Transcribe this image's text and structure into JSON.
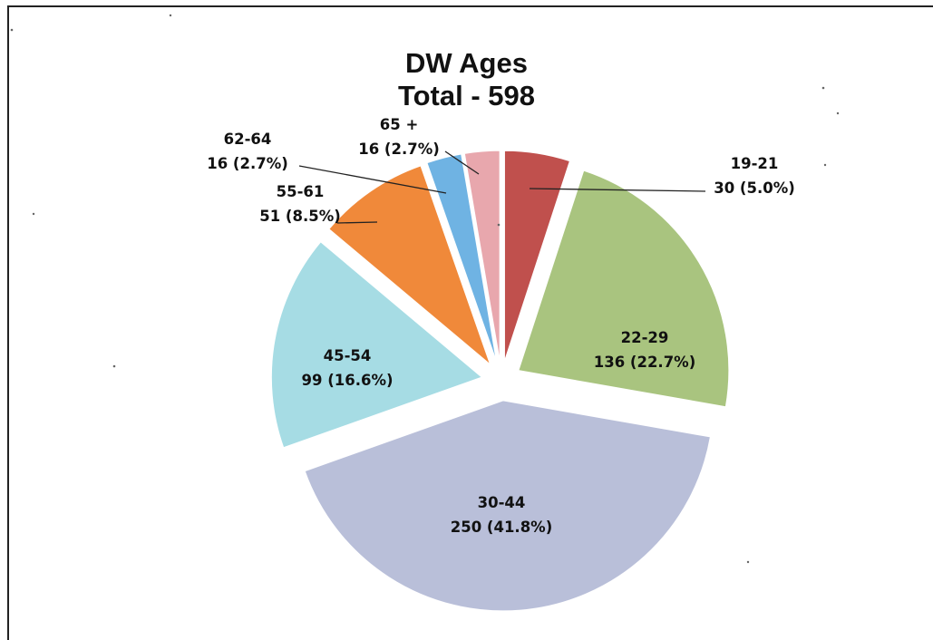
{
  "chart_data": {
    "type": "pie",
    "title": "DW  Ages",
    "subtitle": "Total - 598",
    "total": 598,
    "slices": [
      {
        "label": "19-21",
        "value": 30,
        "percent_text": "30 (5.0%)",
        "color": "#c0504d"
      },
      {
        "label": "22-29",
        "value": 136,
        "percent_text": "136 (22.7%)",
        "color": "#a9c47f"
      },
      {
        "label": "30-44",
        "value": 250,
        "percent_text": "250 (41.8%)",
        "color": "#b9bfd9"
      },
      {
        "label": "45-54",
        "value": 99,
        "percent_text": "99 (16.6%)",
        "color": "#a6dce4"
      },
      {
        "label": "55-61",
        "value": 51,
        "percent_text": "51 (8.5%)",
        "color": "#f0893a"
      },
      {
        "label": "62-64",
        "value": 16,
        "percent_text": "16 (2.7%)",
        "color": "#6fb3e3"
      },
      {
        "label": "65 +",
        "value": 16,
        "percent_text": "16 (2.7%)",
        "color": "#e8a7ad"
      }
    ]
  }
}
